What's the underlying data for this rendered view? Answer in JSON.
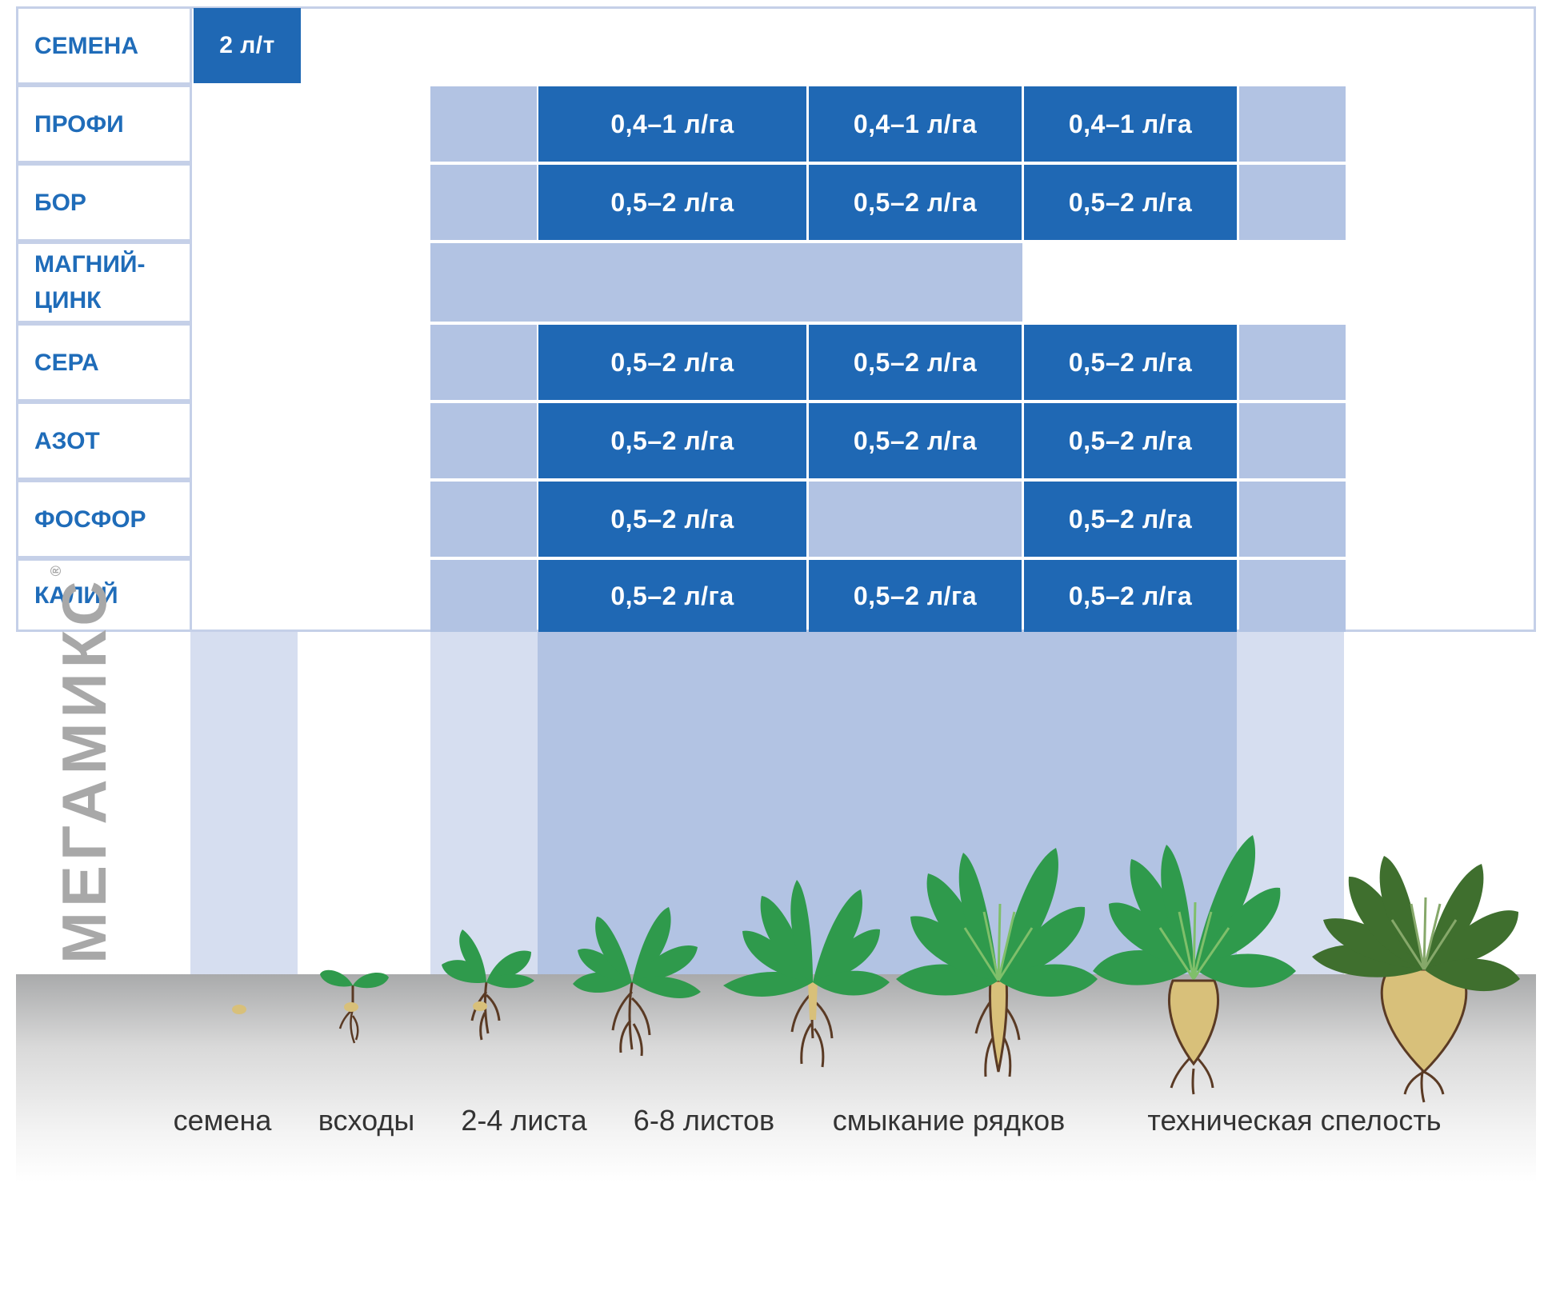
{
  "rows": [
    {
      "label": "СЕМЕНА"
    },
    {
      "label": "ПРОФИ"
    },
    {
      "label": "БОР"
    },
    {
      "label": "МАГНИЙ-ЦИНК",
      "label_lines": [
        "МАГНИЙ-",
        "ЦИНК"
      ]
    },
    {
      "label": "СЕРА"
    },
    {
      "label": "АЗОТ"
    },
    {
      "label": "ФОСФОР"
    },
    {
      "label": "КАЛИЙ"
    }
  ],
  "rates": {
    "semena": "2 л/т",
    "profi": [
      "0,4–1 л/га",
      "0,4–1 л/га",
      "0,4–1 л/га"
    ],
    "bor": [
      "0,5–2 л/га",
      "0,5–2 л/га",
      "0,5–2 л/га"
    ],
    "sera": [
      "0,5–2 л/га",
      "0,5–2 л/га",
      "0,5–2 л/га"
    ],
    "azot": [
      "0,5–2 л/га",
      "0,5–2 л/га",
      "0,5–2 л/га"
    ],
    "fosfor": [
      "0,5–2 л/га",
      "0,5–2 л/га"
    ],
    "kaliy": [
      "0,5–2 л/га",
      "0,5–2 л/га",
      "0,5–2 л/га"
    ]
  },
  "brand": {
    "name": "МЕГАМИКС",
    "mark": "®"
  },
  "stages": [
    "семена",
    "всходы",
    "2-4 листа",
    "6-8 листов",
    "смыкание рядков",
    "техническая спелость"
  ],
  "colors": {
    "dark_cell": "#1f68b4",
    "light_cell": "#b2c3e3",
    "label_text": "#1f6cb9",
    "leaf": "#2f9a4c",
    "leaf_dark": "#3f6f2e",
    "root": "#5a3a24",
    "tuber": "#d8c07a"
  },
  "icons": [
    "seed-icon",
    "sprout-icon",
    "beet-plant-icon",
    "beet-root-icon"
  ]
}
